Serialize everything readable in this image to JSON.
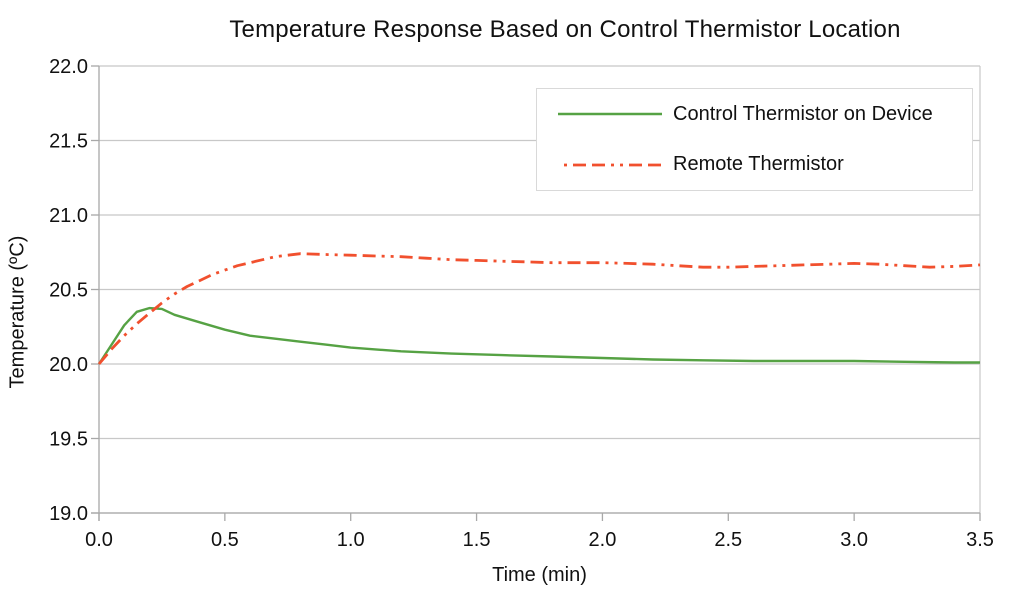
{
  "chart_data": {
    "type": "line",
    "title": "Temperature Response Based on Control Thermistor Location",
    "xlabel": "Time (min)",
    "ylabel": "Temperature (ºC)",
    "xlim": [
      0,
      3.5
    ],
    "ylim": [
      19.0,
      22.0
    ],
    "x_ticks": [
      "0.0",
      "0.5",
      "1.0",
      "1.5",
      "2.0",
      "2.5",
      "3.0",
      "3.5"
    ],
    "x_tick_values": [
      0,
      0.5,
      1.0,
      1.5,
      2.0,
      2.5,
      3.0,
      3.5
    ],
    "y_ticks": [
      "19.0",
      "19.5",
      "20.0",
      "20.5",
      "21.0",
      "21.5",
      "22.0"
    ],
    "y_tick_values": [
      19.0,
      19.5,
      20.0,
      20.5,
      21.0,
      21.5,
      22.0
    ],
    "grid": "horizontal-only, plus right-edge vertical border",
    "legend_position": "top-right inside plot",
    "series": [
      {
        "name": "Control Thermistor on Device",
        "color": "#56a244",
        "line_style": "solid",
        "points": [
          [
            0.0,
            20.0
          ],
          [
            0.05,
            20.13
          ],
          [
            0.1,
            20.26
          ],
          [
            0.15,
            20.35
          ],
          [
            0.2,
            20.375
          ],
          [
            0.25,
            20.37
          ],
          [
            0.3,
            20.33
          ],
          [
            0.4,
            20.28
          ],
          [
            0.5,
            20.23
          ],
          [
            0.6,
            20.19
          ],
          [
            0.7,
            20.17
          ],
          [
            0.8,
            20.15
          ],
          [
            0.9,
            20.13
          ],
          [
            1.0,
            20.11
          ],
          [
            1.2,
            20.085
          ],
          [
            1.4,
            20.07
          ],
          [
            1.6,
            20.06
          ],
          [
            1.8,
            20.05
          ],
          [
            2.0,
            20.04
          ],
          [
            2.2,
            20.03
          ],
          [
            2.4,
            20.025
          ],
          [
            2.6,
            20.02
          ],
          [
            2.8,
            20.02
          ],
          [
            3.0,
            20.02
          ],
          [
            3.2,
            20.015
          ],
          [
            3.4,
            20.01
          ],
          [
            3.5,
            20.01
          ]
        ]
      },
      {
        "name": "Remote Thermistor",
        "color": "#f1502e",
        "line_style": "dash-dash-dot-dot",
        "points": [
          [
            0.0,
            20.0
          ],
          [
            0.05,
            20.1
          ],
          [
            0.1,
            20.19
          ],
          [
            0.15,
            20.27
          ],
          [
            0.2,
            20.34
          ],
          [
            0.25,
            20.41
          ],
          [
            0.3,
            20.47
          ],
          [
            0.35,
            20.52
          ],
          [
            0.4,
            20.56
          ],
          [
            0.45,
            20.6
          ],
          [
            0.5,
            20.63
          ],
          [
            0.55,
            20.66
          ],
          [
            0.6,
            20.68
          ],
          [
            0.65,
            20.7
          ],
          [
            0.7,
            20.72
          ],
          [
            0.75,
            20.73
          ],
          [
            0.8,
            20.74
          ],
          [
            0.9,
            20.735
          ],
          [
            1.0,
            20.73
          ],
          [
            1.1,
            20.725
          ],
          [
            1.2,
            20.72
          ],
          [
            1.3,
            20.71
          ],
          [
            1.4,
            20.7
          ],
          [
            1.5,
            20.695
          ],
          [
            1.6,
            20.69
          ],
          [
            1.7,
            20.685
          ],
          [
            1.8,
            20.68
          ],
          [
            1.9,
            20.68
          ],
          [
            2.0,
            20.68
          ],
          [
            2.1,
            20.675
          ],
          [
            2.2,
            20.67
          ],
          [
            2.3,
            20.66
          ],
          [
            2.4,
            20.65
          ],
          [
            2.5,
            20.65
          ],
          [
            2.6,
            20.655
          ],
          [
            2.7,
            20.66
          ],
          [
            2.8,
            20.665
          ],
          [
            2.9,
            20.67
          ],
          [
            3.0,
            20.675
          ],
          [
            3.1,
            20.67
          ],
          [
            3.2,
            20.66
          ],
          [
            3.3,
            20.65
          ],
          [
            3.4,
            20.655
          ],
          [
            3.5,
            20.665
          ]
        ]
      }
    ]
  },
  "legend": {
    "items": [
      {
        "label": "Control Thermistor on Device"
      },
      {
        "label": "Remote Thermistor"
      }
    ]
  },
  "colors": {
    "background": "#ffffff",
    "grid": "#c8c8c8",
    "axis": "#a8a8a8",
    "text": "#111111",
    "series_green": "#56a244",
    "series_red": "#f1502e",
    "legend_border": "#d9d9d9"
  }
}
